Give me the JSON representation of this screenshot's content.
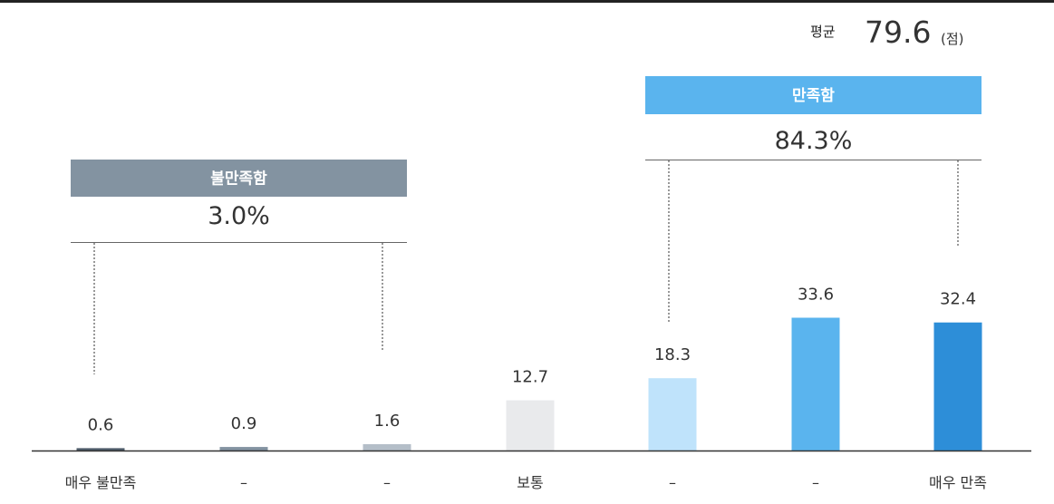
{
  "average": {
    "label": "평균",
    "value": "79.6",
    "unit": "(점)"
  },
  "groups": [
    {
      "label": "불만족함",
      "value": "3.0%",
      "color": "#8393a1"
    },
    {
      "label": "만족함",
      "value": "84.3%",
      "color": "#5ab4ee"
    }
  ],
  "chart_data": {
    "type": "bar",
    "title": "",
    "xlabel": "",
    "ylabel": "",
    "categories": [
      "매우 불만족",
      "–",
      "–",
      "보통",
      "–",
      "–",
      "매우 만족"
    ],
    "values": [
      0.6,
      0.9,
      1.6,
      12.7,
      18.3,
      33.6,
      32.4
    ],
    "value_labels": [
      "0.6",
      "0.9",
      "1.6",
      "12.7",
      "18.3",
      "33.6",
      "32.4"
    ],
    "colors": [
      "#4e5c6a",
      "#8393a1",
      "#b4bec8",
      "#e9eaec",
      "#bfe3fb",
      "#5ab4ee",
      "#2d8ed8"
    ],
    "ylim": [
      0,
      40
    ],
    "grid": false,
    "legend": "none"
  }
}
